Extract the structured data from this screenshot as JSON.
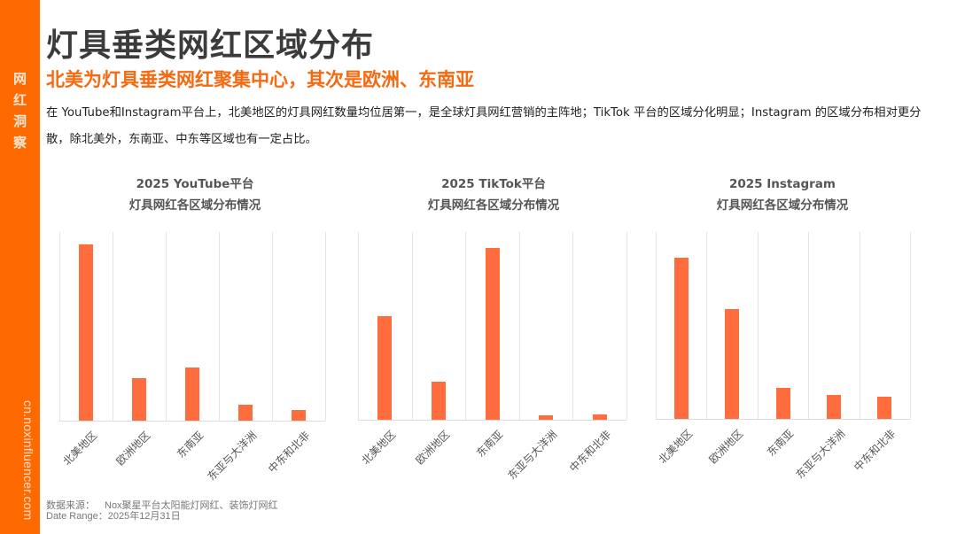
{
  "sidebar": {
    "label_chars": [
      "网",
      "红",
      "洞",
      "察"
    ],
    "url": "cn.noxinfluencer.com",
    "color": "#ff6a00"
  },
  "header": {
    "title": "灯具垂类网红区域分布",
    "subtitle": "北美为灯具垂类网红聚集中心，其次是欧洲、东南亚",
    "description": "在 YouTube和Instagram平台上，北美地区的灯具网红数量均位居第一，是全球灯具网红营销的主阵地；TikTok 平台的区域分化明显；Instagram 的区域分布相对更分散，除北美外，东南亚、中东等区域也有一定占比。"
  },
  "colors": {
    "bar": "#ff6d3f",
    "accent": "#f56a10",
    "title": "#3b3b3b"
  },
  "chart_data": [
    {
      "type": "bar",
      "title": "2025  YouTube平台",
      "subtitle": "灯具网红各区域分布情况",
      "categories": [
        "北美地区",
        "欧洲地区",
        "东南亚",
        "东亚与大洋洲",
        "中东和北非"
      ],
      "values": [
        100,
        24,
        30,
        9,
        6
      ],
      "xlabel": "",
      "ylabel": "",
      "ylim": [
        0,
        107
      ],
      "grid": "vertical",
      "legend": "none",
      "note": "relative values estimated from bar heights; no axis values shown"
    },
    {
      "type": "bar",
      "title": "2025 TikTok平台",
      "subtitle": "灯具网红各区域分布情况",
      "categories": [
        "北美地区",
        "欧洲地区",
        "东南亚",
        "东亚与大洋洲",
        "中东和北非"
      ],
      "values": [
        60,
        22,
        100,
        2.5,
        3
      ],
      "xlabel": "",
      "ylabel": "",
      "ylim": [
        0,
        109
      ],
      "grid": "vertical",
      "legend": "none",
      "note": "relative values estimated from bar heights; no axis values shown"
    },
    {
      "type": "bar",
      "title": "2025  Instagram",
      "subtitle": "灯具网红各区域分布情况",
      "categories": [
        "北美地区",
        "欧洲地区",
        "东南亚",
        "东亚与大洋洲",
        "中东和北非"
      ],
      "values": [
        100,
        68,
        19,
        15,
        14
      ],
      "xlabel": "",
      "ylabel": "",
      "ylim": [
        0,
        116
      ],
      "grid": "vertical",
      "legend": "none",
      "note": "relative values estimated from bar heights; no axis values shown"
    }
  ],
  "footer": {
    "source_label": "数据来源：",
    "source_value": "Nox聚星平台太阳能灯网红、装饰灯网红",
    "range_label": "Date  Range：",
    "range_value": "2025年12月31日"
  }
}
